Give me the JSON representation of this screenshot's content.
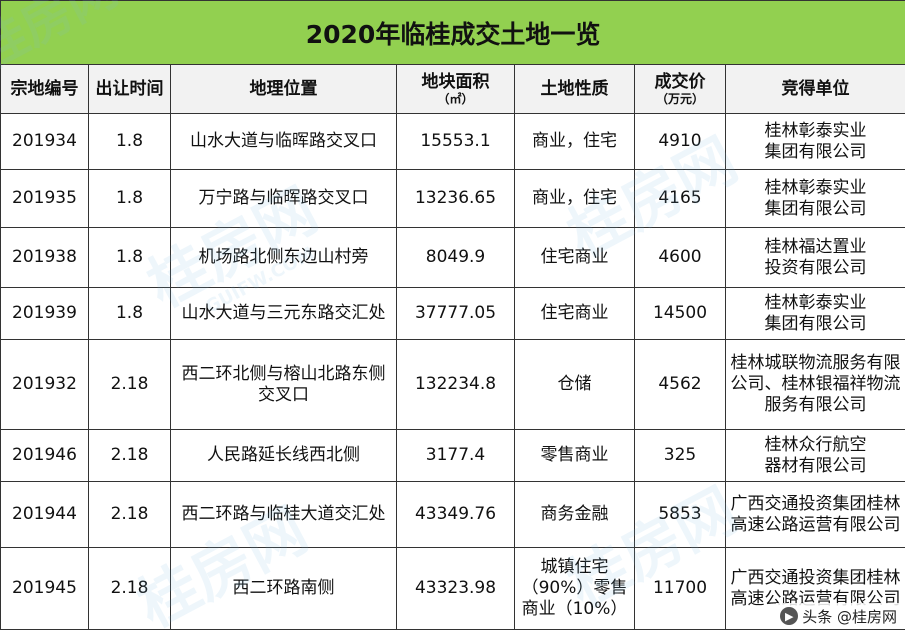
{
  "table": {
    "title": "2020年临桂成交土地一览",
    "headers": [
      {
        "label": "宗地编号",
        "sub": ""
      },
      {
        "label": "出让时间",
        "sub": ""
      },
      {
        "label": "地理位置",
        "sub": ""
      },
      {
        "label": "地块面积",
        "sub": "（㎡）"
      },
      {
        "label": "土地性质",
        "sub": ""
      },
      {
        "label": "成交价",
        "sub": "（万元）"
      },
      {
        "label": "竞得单位",
        "sub": ""
      }
    ],
    "rows": [
      [
        "201934",
        "1.8",
        "山水大道与临晖路交叉口",
        "15553.1",
        "商业，住宅",
        "4910",
        "桂林彰泰实业\n集团有限公司"
      ],
      [
        "201935",
        "1.8",
        "万宁路与临晖路交叉口",
        "13236.65",
        "商业，住宅",
        "4165",
        "桂林彰泰实业\n集团有限公司"
      ],
      [
        "201938",
        "1.8",
        "机场路北侧东边山村旁",
        "8049.9",
        "住宅商业",
        "4600",
        "桂林福达置业\n投资有限公司"
      ],
      [
        "201939",
        "1.8",
        "山水大道与三元东路交汇处",
        "37777.05",
        "住宅商业",
        "14500",
        "桂林彰泰实业\n集团有限公司"
      ],
      [
        "201932",
        "2.18",
        "西二环北侧与榕山北路东侧\n交叉口",
        "132234.8",
        "仓储",
        "4562",
        "桂林城联物流服务有限\n公司、桂林银福祥物流\n服务有限公司"
      ],
      [
        "201946",
        "2.18",
        "人民路延长线西北侧",
        "3177.4",
        "零售商业",
        "325",
        "桂林众行航空\n器材有限公司"
      ],
      [
        "201944",
        "2.18",
        "西二环路与临桂大道交汇处",
        "43349.76",
        "商务金融",
        "5853",
        "广西交通投资集团桂林\n高速公路运营有限公司"
      ],
      [
        "201945",
        "2.18",
        "西二环路南侧",
        "43323.98",
        "城镇住宅\n（90%）零售\n商业（10%）",
        "11700",
        "广西交通投资集团桂林\n高速公路运营有限公司"
      ]
    ]
  },
  "watermark": {
    "text": "桂房网",
    "subtext": "GUIFW.COM"
  },
  "source": {
    "label": "头条 @桂房网",
    "icon": "toutiao-logo-icon"
  }
}
